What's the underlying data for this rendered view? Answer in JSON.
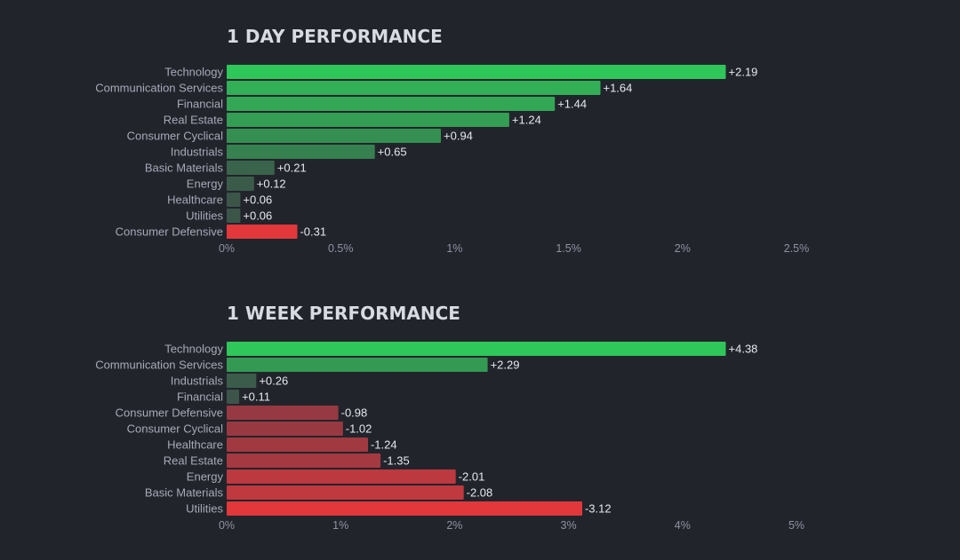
{
  "colors": {
    "background": "#22242c",
    "positive_strong": "#2fc65a",
    "positive_weak": "#3d4b48",
    "negative_weak": "#6e3a45",
    "negative_strong": "#e2383c",
    "value_text": "#e6e8ee",
    "category_text": "#a6aab6",
    "tick_text": "#8e93a0",
    "title_text": "#d8dbe2"
  },
  "chart_data": [
    {
      "type": "bar",
      "orientation": "horizontal",
      "title": "1 DAY PERFORMANCE",
      "categories": [
        "Technology",
        "Communication Services",
        "Financial",
        "Real Estate",
        "Consumer Cyclical",
        "Industrials",
        "Basic Materials",
        "Energy",
        "Healthcare",
        "Utilities",
        "Consumer Defensive"
      ],
      "values": [
        2.19,
        1.64,
        1.44,
        1.24,
        0.94,
        0.65,
        0.21,
        0.12,
        0.06,
        0.06,
        -0.31
      ],
      "value_labels": [
        "+2.19",
        "+1.64",
        "+1.44",
        "+1.24",
        "+0.94",
        "+0.65",
        "+0.21",
        "+0.12",
        "+0.06",
        "+0.06",
        "-0.31"
      ],
      "ticks": [
        0,
        0.5,
        1,
        1.5,
        2,
        2.5
      ],
      "tick_labels": [
        "0%",
        "0.5%",
        "1%",
        "1.5%",
        "2%",
        "2.5%"
      ],
      "xlim": [
        0,
        2.5
      ],
      "bar_extent": "absolute value",
      "grid": false,
      "legend": "none"
    },
    {
      "type": "bar",
      "orientation": "horizontal",
      "title": "1 WEEK PERFORMANCE",
      "categories": [
        "Technology",
        "Communication Services",
        "Industrials",
        "Financial",
        "Consumer Defensive",
        "Consumer Cyclical",
        "Healthcare",
        "Real Estate",
        "Energy",
        "Basic Materials",
        "Utilities"
      ],
      "values": [
        4.38,
        2.29,
        0.26,
        0.11,
        -0.98,
        -1.02,
        -1.24,
        -1.35,
        -2.01,
        -2.08,
        -3.12
      ],
      "value_labels": [
        "+4.38",
        "+2.29",
        "+0.26",
        "+0.11",
        "-0.98",
        "-1.02",
        "-1.24",
        "-1.35",
        "-2.01",
        "-2.08",
        "-3.12"
      ],
      "ticks": [
        0,
        1,
        2,
        3,
        4,
        5
      ],
      "tick_labels": [
        "0%",
        "1%",
        "2%",
        "3%",
        "4%",
        "5%"
      ],
      "xlim": [
        0,
        5
      ],
      "bar_extent": "absolute value",
      "grid": false,
      "legend": "none"
    }
  ]
}
